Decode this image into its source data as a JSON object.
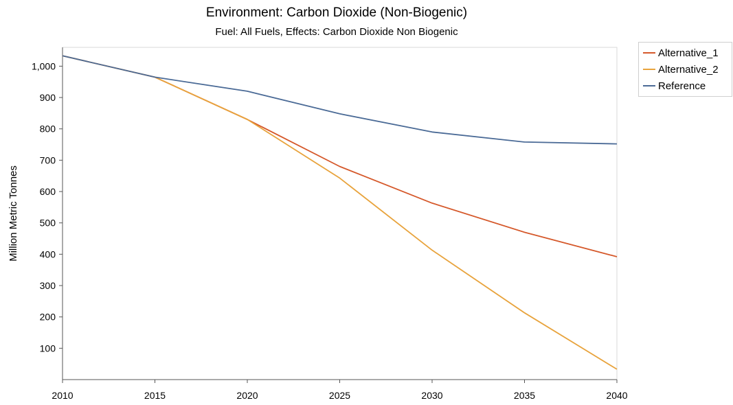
{
  "chart_data": {
    "type": "line",
    "title": "Environment: Carbon Dioxide (Non-Biogenic)",
    "subtitle": "Fuel: All Fuels, Effects: Carbon Dioxide Non Biogenic",
    "xlabel": "",
    "ylabel": "Million Metric Tonnes",
    "x": [
      2010,
      2015,
      2020,
      2025,
      2030,
      2035,
      2040
    ],
    "xlim": [
      2010,
      2040
    ],
    "ylim": [
      0,
      1060
    ],
    "xticks": [
      "2010",
      "2015",
      "2020",
      "2025",
      "2030",
      "2035",
      "2040"
    ],
    "yticks": [
      "100",
      "200",
      "300",
      "400",
      "500",
      "600",
      "700",
      "800",
      "900",
      "1,000"
    ],
    "grid": false,
    "legend_position": "top-right outside",
    "series": [
      {
        "name": "Alternative_1",
        "color": "#d5582a",
        "values": [
          1033,
          965,
          830,
          680,
          563,
          470,
          392
        ]
      },
      {
        "name": "Alternative_2",
        "color": "#e8a33c",
        "values": [
          1033,
          965,
          830,
          643,
          413,
          213,
          33
        ]
      },
      {
        "name": "Reference",
        "color": "#4a6a96",
        "values": [
          1033,
          965,
          920,
          848,
          790,
          758,
          752
        ]
      }
    ]
  }
}
